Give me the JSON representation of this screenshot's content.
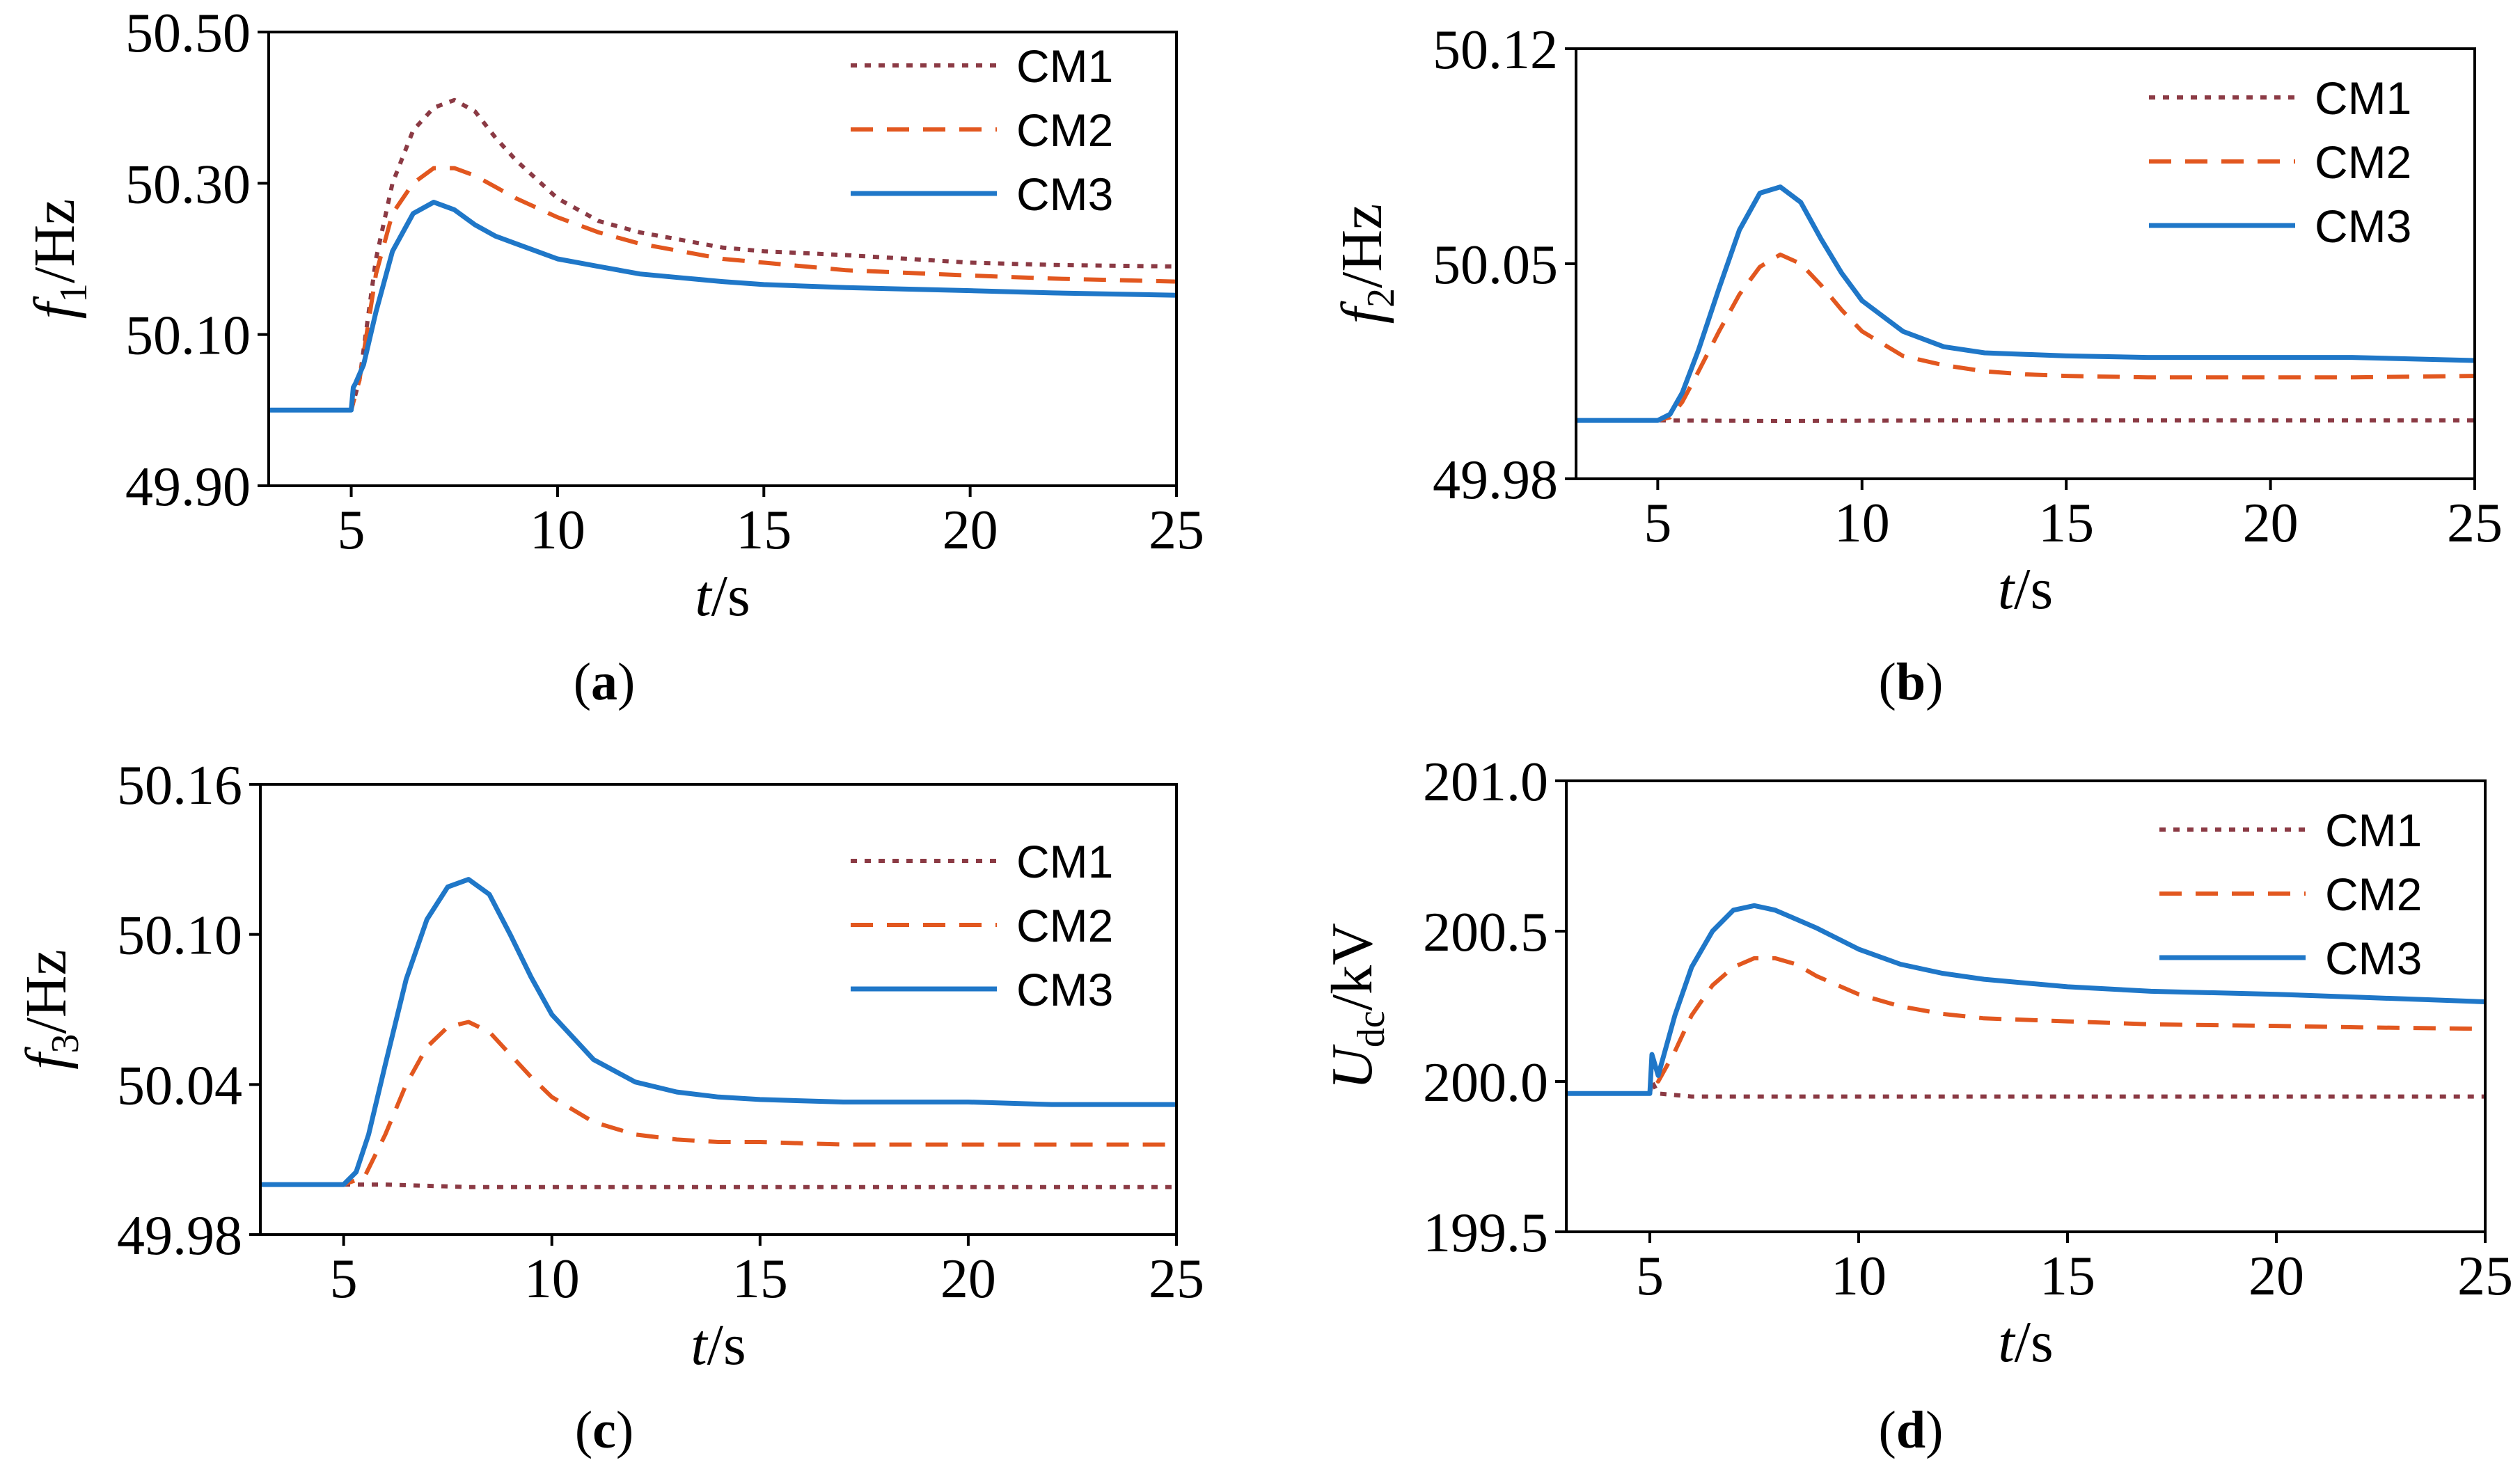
{
  "chart_data": [
    {
      "id": "a",
      "type": "line",
      "caption_letter": "a",
      "xlabel": {
        "main": "t",
        "suffix": "/s"
      },
      "ylabel": {
        "main": "f",
        "sub": "1",
        "suffix": "/Hz"
      },
      "xlim": [
        3,
        25
      ],
      "ylim": [
        49.9,
        50.5
      ],
      "xticks": [
        5,
        10,
        15,
        20,
        25
      ],
      "yticks": [
        49.9,
        50.1,
        50.3,
        50.5
      ],
      "ytick_labels": [
        "49.90",
        "50.10",
        "50.30",
        "50.50"
      ],
      "grid": false,
      "legend_position": "top-right",
      "series": [
        {
          "name": "CM1",
          "color": "#8B3A44",
          "dash": "dotted",
          "x": [
            3,
            5,
            5.2,
            5.6,
            6,
            6.5,
            7,
            7.5,
            8,
            8.5,
            9,
            10,
            11,
            12,
            13,
            14,
            15,
            17,
            20,
            22,
            25
          ],
          "y": [
            50.0,
            50.0,
            50.04,
            50.2,
            50.3,
            50.37,
            50.4,
            50.41,
            50.395,
            50.36,
            50.33,
            50.28,
            50.25,
            50.235,
            50.225,
            50.215,
            50.21,
            50.205,
            50.195,
            50.192,
            50.19
          ]
        },
        {
          "name": "CM2",
          "color": "#E2571F",
          "dash": "dashed",
          "x": [
            3,
            5,
            5.2,
            5.6,
            6,
            6.5,
            7,
            7.5,
            8,
            8.5,
            9,
            10,
            11,
            12,
            13,
            14,
            15,
            17,
            20,
            22,
            25
          ],
          "y": [
            50.0,
            50.0,
            50.04,
            50.18,
            50.26,
            50.3,
            50.32,
            50.32,
            50.31,
            50.295,
            50.28,
            50.255,
            50.235,
            50.22,
            50.21,
            50.2,
            50.195,
            50.185,
            50.178,
            50.174,
            50.17
          ]
        },
        {
          "name": "CM3",
          "color": "#1F77C8",
          "dash": "solid",
          "x": [
            3,
            5,
            5.05,
            5.1,
            5.3,
            5.6,
            6,
            6.5,
            7,
            7.5,
            8,
            8.5,
            9,
            10,
            11,
            12,
            13,
            14,
            15,
            17,
            20,
            22,
            25
          ],
          "y": [
            50.0,
            50.0,
            50.03,
            50.035,
            50.06,
            50.13,
            50.21,
            50.26,
            50.275,
            50.265,
            50.245,
            50.23,
            50.22,
            50.2,
            50.19,
            50.18,
            50.175,
            50.17,
            50.166,
            50.162,
            50.158,
            50.155,
            50.152
          ]
        }
      ]
    },
    {
      "id": "b",
      "type": "line",
      "caption_letter": "b",
      "xlabel": {
        "main": "t",
        "suffix": "/s"
      },
      "ylabel": {
        "main": "f",
        "sub": "2",
        "suffix": "/Hz"
      },
      "xlim": [
        3,
        25
      ],
      "ylim": [
        49.98,
        50.12
      ],
      "xticks": [
        5,
        10,
        15,
        20,
        25
      ],
      "yticks": [
        49.98,
        50.05,
        50.12
      ],
      "ytick_labels": [
        "49.98",
        "50.05",
        "50.12"
      ],
      "grid": false,
      "legend_position": "top-right",
      "series": [
        {
          "name": "CM1",
          "color": "#8B3A44",
          "dash": "dotted",
          "x": [
            3,
            5,
            8,
            12,
            16,
            20,
            25
          ],
          "y": [
            49.999,
            49.999,
            49.9988,
            49.999,
            49.999,
            49.999,
            49.999
          ]
        },
        {
          "name": "CM2",
          "color": "#E2571F",
          "dash": "dashed",
          "x": [
            3,
            5,
            5.3,
            5.6,
            6,
            6.5,
            7,
            7.5,
            8,
            8.5,
            9,
            9.5,
            10,
            11,
            12,
            13,
            14,
            15,
            17,
            20,
            22,
            25
          ],
          "y": [
            49.999,
            49.999,
            50.0,
            50.005,
            50.015,
            50.028,
            50.04,
            50.049,
            50.053,
            50.05,
            50.043,
            50.035,
            50.028,
            50.02,
            50.017,
            50.015,
            50.014,
            50.0135,
            50.013,
            50.013,
            50.013,
            50.0135
          ]
        },
        {
          "name": "CM3",
          "color": "#1F77C8",
          "dash": "solid",
          "x": [
            3,
            5,
            5.3,
            5.6,
            6,
            6.5,
            7,
            7.5,
            8,
            8.5,
            9,
            9.5,
            10,
            11,
            12,
            13,
            14,
            15,
            17,
            20,
            22,
            25
          ],
          "y": [
            49.999,
            49.999,
            50.001,
            50.008,
            50.022,
            50.042,
            50.061,
            50.073,
            50.075,
            50.07,
            50.058,
            50.047,
            50.038,
            50.028,
            50.023,
            50.021,
            50.0205,
            50.02,
            50.0195,
            50.0195,
            50.0195,
            50.0185
          ]
        }
      ]
    },
    {
      "id": "c",
      "type": "line",
      "caption_letter": "c",
      "xlabel": {
        "main": "t",
        "suffix": "/s"
      },
      "ylabel": {
        "main": "f",
        "sub": "3",
        "suffix": "/Hz"
      },
      "xlim": [
        3,
        25
      ],
      "ylim": [
        49.98,
        50.16
      ],
      "xticks": [
        5,
        10,
        15,
        20,
        25
      ],
      "yticks": [
        49.98,
        50.04,
        50.1,
        50.16
      ],
      "ytick_labels": [
        "49.98",
        "50.04",
        "50.10",
        "50.16"
      ],
      "grid": false,
      "legend_position": "top-right",
      "series": [
        {
          "name": "CM1",
          "color": "#8B3A44",
          "dash": "dotted",
          "x": [
            3,
            5,
            6,
            8,
            12,
            16,
            20,
            25
          ],
          "y": [
            50.0,
            50.0,
            50.0,
            49.999,
            49.999,
            49.999,
            49.999,
            49.999
          ]
        },
        {
          "name": "CM2",
          "color": "#E2571F",
          "dash": "dashed",
          "x": [
            3,
            5,
            5.5,
            6,
            6.5,
            7,
            7.5,
            8,
            8.5,
            9,
            9.5,
            10,
            11,
            12,
            13,
            14,
            15,
            17,
            20,
            22,
            25
          ],
          "y": [
            50.0,
            50.0,
            50.003,
            50.02,
            50.04,
            50.055,
            50.063,
            50.065,
            50.061,
            50.052,
            50.043,
            50.035,
            50.025,
            50.02,
            50.018,
            50.017,
            50.017,
            50.016,
            50.016,
            50.016,
            50.016
          ]
        },
        {
          "name": "CM3",
          "color": "#1F77C8",
          "dash": "solid",
          "x": [
            3,
            5,
            5.3,
            5.6,
            6,
            6.5,
            7,
            7.5,
            8,
            8.5,
            9,
            9.5,
            10,
            11,
            12,
            13,
            14,
            15,
            17,
            20,
            22,
            25
          ],
          "y": [
            50.0,
            50.0,
            50.005,
            50.02,
            50.048,
            50.082,
            50.106,
            50.119,
            50.122,
            50.116,
            50.1,
            50.083,
            50.068,
            50.05,
            50.041,
            50.037,
            50.035,
            50.034,
            50.033,
            50.033,
            50.032,
            50.032
          ]
        }
      ]
    },
    {
      "id": "d",
      "type": "line",
      "caption_letter": "d",
      "xlabel": {
        "main": "t",
        "suffix": "/s"
      },
      "ylabel": {
        "main": "U",
        "sub": "dc",
        "suffix": "/kV"
      },
      "xlim": [
        3,
        25
      ],
      "ylim": [
        199.5,
        201.0
      ],
      "xticks": [
        5,
        10,
        15,
        20,
        25
      ],
      "yticks": [
        199.5,
        200.0,
        200.5,
        201.0
      ],
      "ytick_labels": [
        "199.5",
        "200.0",
        "200.5",
        "201.0"
      ],
      "grid": false,
      "legend_position": "top-right",
      "series": [
        {
          "name": "CM1",
          "color": "#8B3A44",
          "dash": "dotted",
          "x": [
            3,
            5,
            5.05,
            5.2,
            6,
            10,
            15,
            20,
            25
          ],
          "y": [
            199.96,
            199.96,
            200.0,
            199.96,
            199.95,
            199.95,
            199.95,
            199.95,
            199.95
          ]
        },
        {
          "name": "CM2",
          "color": "#E2571F",
          "dash": "dashed",
          "x": [
            3,
            5,
            5.05,
            5.2,
            5.6,
            6,
            6.5,
            7,
            7.5,
            8,
            8.5,
            9,
            10,
            11,
            12,
            13,
            15,
            17,
            20,
            22,
            25
          ],
          "y": [
            199.96,
            199.96,
            200.02,
            200.0,
            200.1,
            200.22,
            200.32,
            200.38,
            200.41,
            200.41,
            200.39,
            200.35,
            200.29,
            200.25,
            200.225,
            200.21,
            200.2,
            200.19,
            200.185,
            200.18,
            200.175
          ]
        },
        {
          "name": "CM3",
          "color": "#1F77C8",
          "dash": "solid",
          "x": [
            3,
            5,
            5.05,
            5.2,
            5.6,
            6,
            6.5,
            7,
            7.5,
            8,
            8.5,
            9,
            10,
            11,
            12,
            13,
            15,
            17,
            20,
            22,
            25
          ],
          "y": [
            199.96,
            199.96,
            200.09,
            200.02,
            200.22,
            200.38,
            200.5,
            200.57,
            200.585,
            200.57,
            200.54,
            200.51,
            200.44,
            200.39,
            200.36,
            200.34,
            200.315,
            200.3,
            200.29,
            200.28,
            200.265
          ]
        }
      ]
    }
  ]
}
